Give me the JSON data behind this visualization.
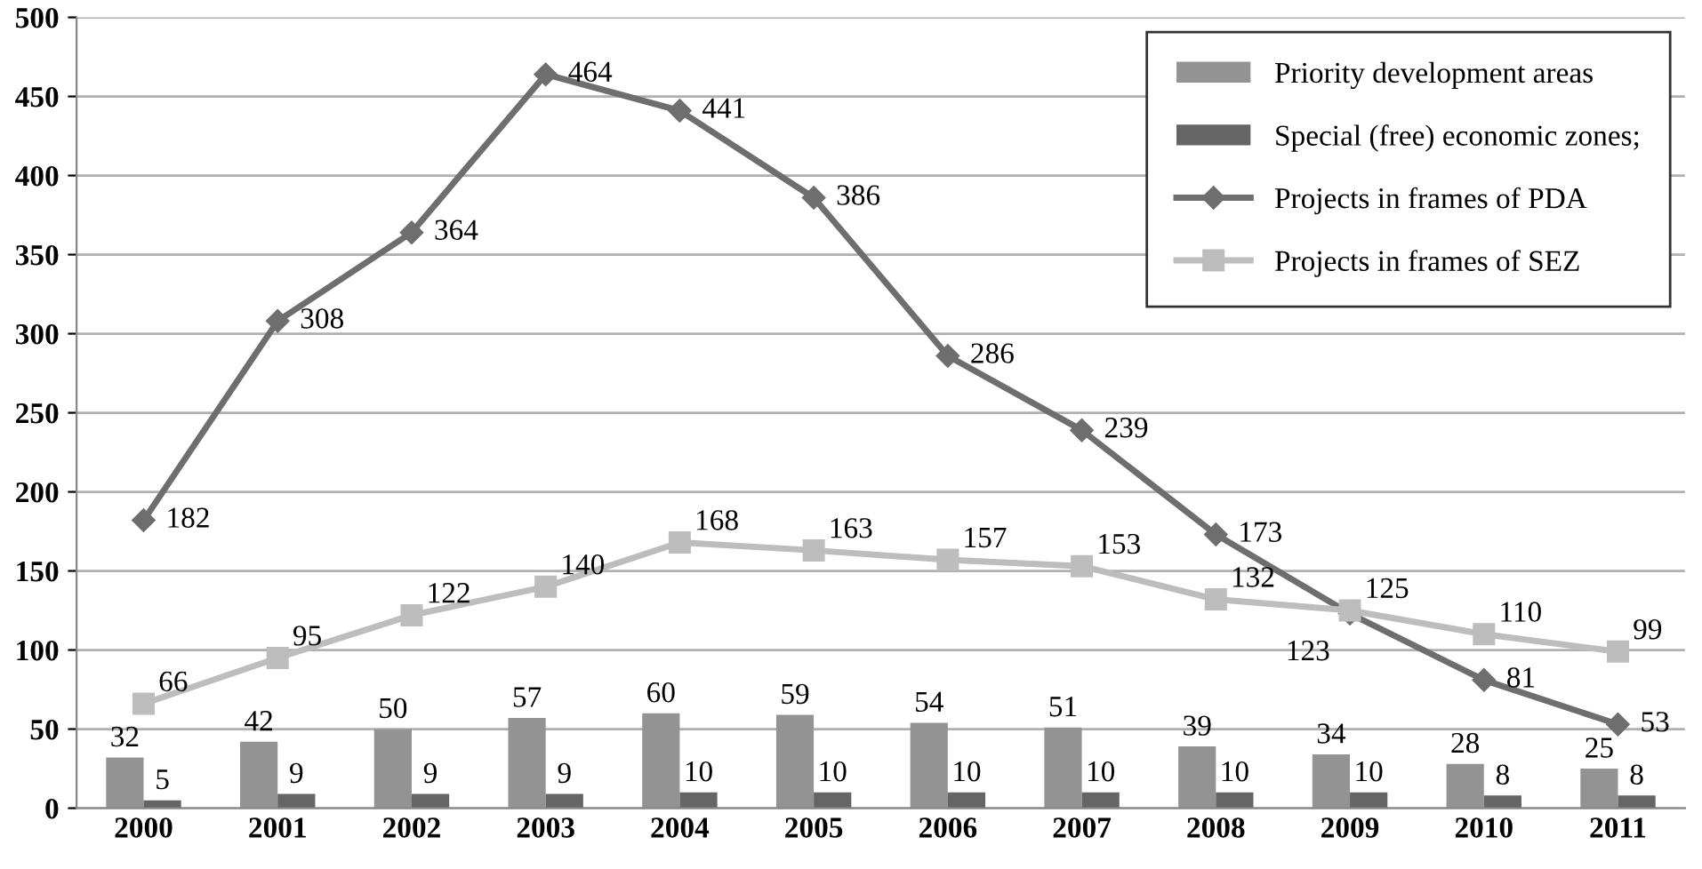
{
  "chart_data": {
    "type": "bar",
    "categories": [
      "2000",
      "2001",
      "2002",
      "2003",
      "2004",
      "2005",
      "2006",
      "2007",
      "2008",
      "2009",
      "2010",
      "2011"
    ],
    "series": [
      {
        "name": "Priority development areas",
        "color": "#939393",
        "values": [
          32,
          42,
          50,
          57,
          60,
          59,
          54,
          51,
          39,
          34,
          28,
          25
        ]
      },
      {
        "name": "Special (free) economic zones;",
        "color": "#656565",
        "values": [
          5,
          9,
          9,
          9,
          10,
          10,
          10,
          10,
          10,
          10,
          8,
          8
        ]
      },
      {
        "name": "Projects in frames of PDA",
        "type": "line",
        "color": "#6e6e6e",
        "marker": "diamond",
        "values": [
          182,
          308,
          364,
          464,
          441,
          386,
          286,
          239,
          173,
          123,
          81,
          53
        ]
      },
      {
        "name": "Projects in frames of SEZ",
        "type": "line",
        "color": "#bdbdbd",
        "marker": "square",
        "values": [
          66,
          95,
          122,
          140,
          168,
          163,
          157,
          153,
          132,
          125,
          110,
          99
        ]
      }
    ],
    "ylim": [
      0,
      500
    ],
    "yticks": [
      0,
      50,
      100,
      150,
      200,
      250,
      300,
      350,
      400,
      450,
      500
    ],
    "grid": "y",
    "legend": "top right",
    "data_labels": true
  }
}
